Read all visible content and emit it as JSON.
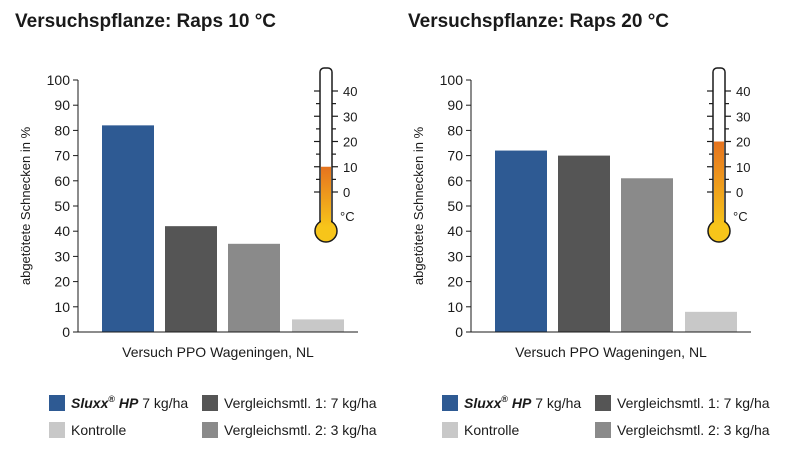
{
  "legend": [
    {
      "brand": "Sluxx",
      "reg": "®",
      "product": "HP",
      "dose": "7 kg/ha",
      "color": "#2e5a93"
    },
    {
      "label": "Vergleichsmtl. 1: 7 kg/ha",
      "color": "#555555"
    },
    {
      "label": "Kontrolle",
      "color": "#c8c8c8"
    },
    {
      "label": "Vergleichsmtl. 2: 3 kg/ha",
      "color": "#8a8a8a"
    }
  ],
  "chart_data": [
    {
      "type": "bar",
      "title": "Versuchspflanze: Raps 10 °C",
      "xlabel": "Versuch PPO Wageningen, NL",
      "ylabel": "abgetötete Schnecken in %",
      "ylim": [
        0,
        100
      ],
      "yticks": [
        "0",
        "10",
        "20",
        "30",
        "40",
        "50",
        "60",
        "70",
        "80",
        "90",
        "100"
      ],
      "values": [
        82,
        42,
        35,
        5
      ],
      "colors": [
        "#2e5a93",
        "#555555",
        "#8a8a8a",
        "#c8c8c8"
      ],
      "grid": false,
      "thermometer": {
        "ticks": [
          "40",
          "30",
          "20",
          "10",
          "0"
        ],
        "unit": "°C",
        "temperature": 10,
        "range": [
          0,
          40
        ]
      }
    },
    {
      "type": "bar",
      "title": "Versuchspflanze: Raps 20 °C",
      "xlabel": "Versuch PPO Wageningen, NL",
      "ylabel": "abgetötete Schnecken in %",
      "ylim": [
        0,
        100
      ],
      "yticks": [
        "0",
        "10",
        "20",
        "30",
        "40",
        "50",
        "60",
        "70",
        "80",
        "90",
        "100"
      ],
      "values": [
        72,
        70,
        61,
        8
      ],
      "colors": [
        "#2e5a93",
        "#555555",
        "#8a8a8a",
        "#c8c8c8"
      ],
      "grid": false,
      "thermometer": {
        "ticks": [
          "40",
          "30",
          "20",
          "10",
          "0"
        ],
        "unit": "°C",
        "temperature": 20,
        "range": [
          0,
          40
        ]
      }
    }
  ]
}
